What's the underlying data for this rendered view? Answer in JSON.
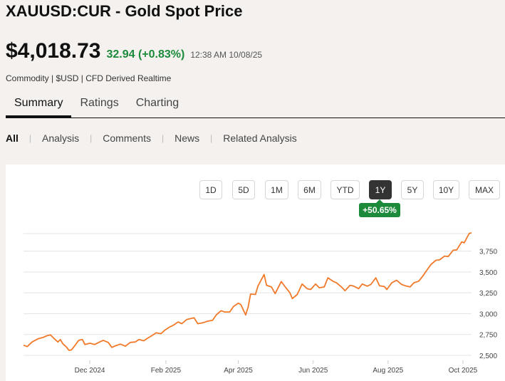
{
  "header": {
    "title": "XAUUSD:CUR - Gold Spot Price",
    "price": "$4,018.73",
    "change": "32.94 (+0.83%)",
    "timestamp": "12:38 AM 10/08/25",
    "meta": "Commodity | $USD | CFD Derived Realtime"
  },
  "tabs": [
    {
      "label": "Summary",
      "active": true
    },
    {
      "label": "Ratings",
      "active": false
    },
    {
      "label": "Charting",
      "active": false
    }
  ],
  "subnav": [
    {
      "label": "All",
      "active": true
    },
    {
      "label": "Analysis",
      "active": false
    },
    {
      "label": "Comments",
      "active": false
    },
    {
      "label": "News",
      "active": false
    },
    {
      "label": "Related Analysis",
      "active": false
    }
  ],
  "ranges": [
    {
      "label": "1D",
      "active": false
    },
    {
      "label": "5D",
      "active": false
    },
    {
      "label": "1M",
      "active": false
    },
    {
      "label": "6M",
      "active": false
    },
    {
      "label": "YTD",
      "active": false
    },
    {
      "label": "1Y",
      "active": true
    },
    {
      "label": "5Y",
      "active": false
    },
    {
      "label": "10Y",
      "active": false
    },
    {
      "label": "MAX",
      "active": false
    }
  ],
  "range_change": "+50.65%",
  "colors": {
    "line": "#f07a2a",
    "positive": "#1b8a3a",
    "grid": "#e3e3e3"
  },
  "chart_data": {
    "type": "line",
    "title": "",
    "xlabel": "",
    "ylabel": "",
    "x_range": [
      "2024-10-08",
      "2025-10-08"
    ],
    "ylim": [
      2440,
      3960
    ],
    "y_ticks": [
      2500,
      2750,
      3000,
      3250,
      3500,
      3750
    ],
    "y_tick_labels": [
      "2,500",
      "2,750",
      "3,000",
      "3,250",
      "3,500",
      "3,750"
    ],
    "x_ticks": [
      "2024-12-01",
      "2025-02-01",
      "2025-04-01",
      "2025-06-01",
      "2025-08-01",
      "2025-10-01"
    ],
    "x_tick_labels": [
      "Dec 2024",
      "Feb 2025",
      "Apr 2025",
      "Jun 2025",
      "Aug 2025",
      "Oct 2025"
    ],
    "grid": true,
    "series": [
      {
        "points": [
          [
            "2024-10-08",
            2622
          ],
          [
            "2024-10-11",
            2605
          ],
          [
            "2024-10-15",
            2660
          ],
          [
            "2024-10-20",
            2700
          ],
          [
            "2024-10-24",
            2715
          ],
          [
            "2024-10-27",
            2735
          ],
          [
            "2024-10-30",
            2745
          ],
          [
            "2024-11-02",
            2700
          ],
          [
            "2024-11-05",
            2660
          ],
          [
            "2024-11-07",
            2690
          ],
          [
            "2024-11-09",
            2640
          ],
          [
            "2024-11-12",
            2600
          ],
          [
            "2024-11-14",
            2560
          ],
          [
            "2024-11-16",
            2565
          ],
          [
            "2024-11-19",
            2620
          ],
          [
            "2024-11-22",
            2680
          ],
          [
            "2024-11-25",
            2690
          ],
          [
            "2024-11-27",
            2630
          ],
          [
            "2024-12-01",
            2645
          ],
          [
            "2024-12-05",
            2630
          ],
          [
            "2024-12-09",
            2660
          ],
          [
            "2024-12-12",
            2680
          ],
          [
            "2024-12-16",
            2655
          ],
          [
            "2024-12-19",
            2595
          ],
          [
            "2024-12-22",
            2615
          ],
          [
            "2024-12-26",
            2635
          ],
          [
            "2024-12-30",
            2610
          ],
          [
            "2025-01-03",
            2655
          ],
          [
            "2025-01-07",
            2660
          ],
          [
            "2025-01-10",
            2690
          ],
          [
            "2025-01-14",
            2675
          ],
          [
            "2025-01-17",
            2705
          ],
          [
            "2025-01-21",
            2740
          ],
          [
            "2025-01-24",
            2770
          ],
          [
            "2025-01-28",
            2760
          ],
          [
            "2025-01-31",
            2800
          ],
          [
            "2025-02-04",
            2840
          ],
          [
            "2025-02-07",
            2860
          ],
          [
            "2025-02-11",
            2900
          ],
          [
            "2025-02-14",
            2880
          ],
          [
            "2025-02-18",
            2930
          ],
          [
            "2025-02-21",
            2940
          ],
          [
            "2025-02-24",
            2950
          ],
          [
            "2025-02-27",
            2880
          ],
          [
            "2025-03-03",
            2890
          ],
          [
            "2025-03-07",
            2910
          ],
          [
            "2025-03-11",
            2920
          ],
          [
            "2025-03-14",
            2985
          ],
          [
            "2025-03-18",
            3035
          ],
          [
            "2025-03-21",
            3020
          ],
          [
            "2025-03-25",
            3020
          ],
          [
            "2025-03-28",
            3085
          ],
          [
            "2025-04-01",
            3125
          ],
          [
            "2025-04-03",
            3110
          ],
          [
            "2025-04-07",
            2985
          ],
          [
            "2025-04-09",
            3080
          ],
          [
            "2025-04-11",
            3235
          ],
          [
            "2025-04-15",
            3230
          ],
          [
            "2025-04-17",
            3330
          ],
          [
            "2025-04-22",
            3470
          ],
          [
            "2025-04-24",
            3340
          ],
          [
            "2025-04-28",
            3320
          ],
          [
            "2025-05-01",
            3240
          ],
          [
            "2025-05-06",
            3385
          ],
          [
            "2025-05-09",
            3325
          ],
          [
            "2025-05-13",
            3250
          ],
          [
            "2025-05-15",
            3180
          ],
          [
            "2025-05-19",
            3230
          ],
          [
            "2025-05-23",
            3355
          ],
          [
            "2025-05-27",
            3300
          ],
          [
            "2025-05-30",
            3290
          ],
          [
            "2025-06-03",
            3355
          ],
          [
            "2025-06-06",
            3310
          ],
          [
            "2025-06-10",
            3320
          ],
          [
            "2025-06-13",
            3430
          ],
          [
            "2025-06-17",
            3390
          ],
          [
            "2025-06-20",
            3370
          ],
          [
            "2025-06-24",
            3320
          ],
          [
            "2025-06-27",
            3275
          ],
          [
            "2025-07-01",
            3340
          ],
          [
            "2025-07-04",
            3330
          ],
          [
            "2025-07-08",
            3300
          ],
          [
            "2025-07-11",
            3355
          ],
          [
            "2025-07-15",
            3330
          ],
          [
            "2025-07-18",
            3350
          ],
          [
            "2025-07-22",
            3430
          ],
          [
            "2025-07-25",
            3335
          ],
          [
            "2025-07-29",
            3325
          ],
          [
            "2025-07-31",
            3290
          ],
          [
            "2025-08-04",
            3370
          ],
          [
            "2025-08-08",
            3400
          ],
          [
            "2025-08-12",
            3350
          ],
          [
            "2025-08-15",
            3335
          ],
          [
            "2025-08-19",
            3320
          ],
          [
            "2025-08-22",
            3370
          ],
          [
            "2025-08-26",
            3390
          ],
          [
            "2025-08-29",
            3445
          ],
          [
            "2025-09-02",
            3530
          ],
          [
            "2025-09-05",
            3590
          ],
          [
            "2025-09-09",
            3640
          ],
          [
            "2025-09-12",
            3645
          ],
          [
            "2025-09-16",
            3690
          ],
          [
            "2025-09-19",
            3685
          ],
          [
            "2025-09-23",
            3760
          ],
          [
            "2025-09-26",
            3765
          ],
          [
            "2025-09-30",
            3860
          ],
          [
            "2025-10-02",
            3850
          ],
          [
            "2025-10-06",
            3960
          ],
          [
            "2025-10-08",
            3970
          ]
        ]
      }
    ]
  }
}
